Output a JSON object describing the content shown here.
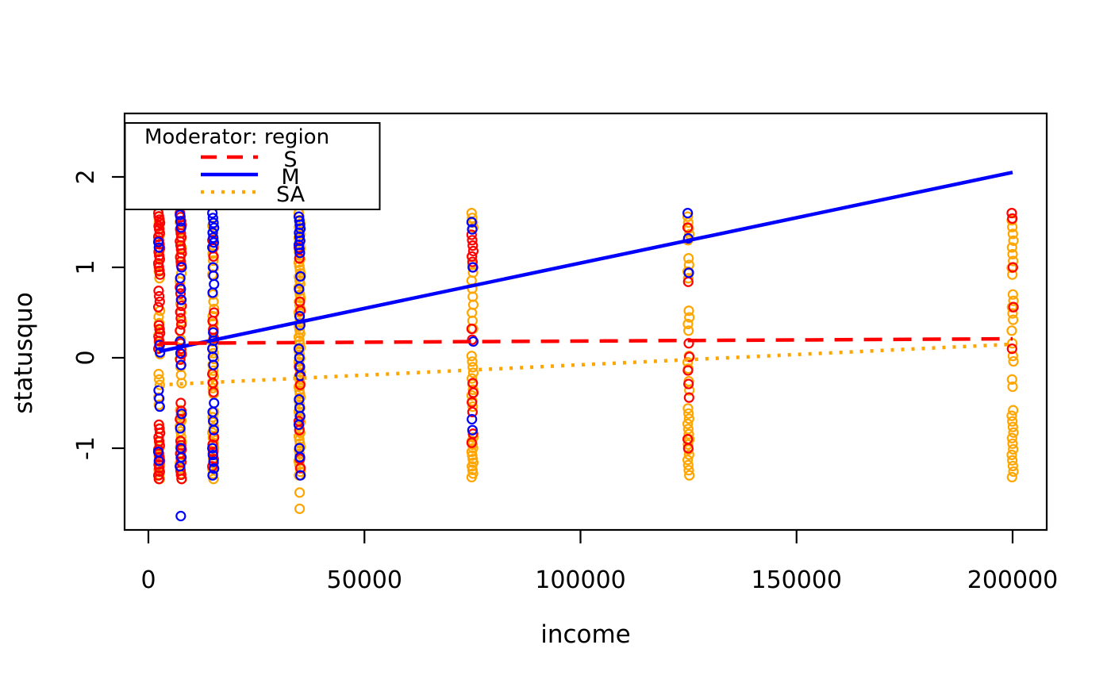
{
  "chart_data": {
    "type": "scatter",
    "title": "",
    "xlabel": "income",
    "ylabel": "statusquo",
    "x_ticks": [
      0,
      50000,
      100000,
      150000,
      200000
    ],
    "x_tick_labels": [
      "0",
      "50000",
      "100000",
      "150000",
      "200000"
    ],
    "y_ticks": [
      -1,
      0,
      1,
      2
    ],
    "y_tick_labels": [
      "-1",
      "0",
      "1",
      "2"
    ],
    "xlim": [
      -5500,
      208000
    ],
    "ylim": [
      -1.9,
      2.7
    ],
    "grid": false,
    "legend": {
      "title": "Moderator: region",
      "position": "top-left",
      "entries": [
        {
          "label": "S",
          "color": "#ff0000",
          "linetype": "dashed"
        },
        {
          "label": "M",
          "color": "#0000ff",
          "linetype": "solid"
        },
        {
          "label": "SA",
          "color": "#ffa500",
          "linetype": "dotted"
        }
      ]
    },
    "lines": [
      {
        "name": "M",
        "color": "#0000ff",
        "linetype": "solid",
        "x": [
          2500,
          200000
        ],
        "y": [
          0.07,
          2.05
        ]
      },
      {
        "name": "S",
        "color": "#ff0000",
        "linetype": "dashed",
        "x": [
          2500,
          200000
        ],
        "y": [
          0.16,
          0.21
        ]
      },
      {
        "name": "SA",
        "color": "#ffa500",
        "linetype": "dotted",
        "x": [
          2500,
          200000
        ],
        "y": [
          -0.3,
          0.15
        ]
      }
    ],
    "colors": {
      "red": "#ff0000",
      "blue": "#0000ff",
      "orange": "#ffa500",
      "axis": "#000000"
    },
    "scatter": {
      "marker": "open-circle",
      "income_levels": [
        2500,
        7500,
        15000,
        35000,
        75000,
        125000,
        200000
      ],
      "y_range_dense": [
        -1.35,
        1.62
      ],
      "columns": [
        {
          "income": 2500,
          "segments": {
            "red": [
              [
                1.6,
                1.42,
                6
              ],
              [
                1.38,
                0.92,
                12
              ],
              [
                0.74,
                0.56,
                4
              ],
              [
                0.36,
                0.1,
                7
              ],
              [
                -0.74,
                -1.06,
                8
              ],
              [
                -1.1,
                -1.34,
                7
              ]
            ],
            "orange": [
              [
                1.56,
                1.3,
                5
              ],
              [
                1.18,
                0.88,
                5
              ],
              [
                0.52,
                0.04,
                8
              ],
              [
                -0.18,
                -0.3,
                3
              ],
              [
                -0.44,
                -0.52,
                2
              ],
              [
                -0.78,
                -1.34,
                12
              ]
            ],
            "blue": [
              [
                1.28,
                1.22,
                2
              ],
              [
                0.14,
                0.06,
                2
              ],
              [
                -0.36,
                -0.54,
                3
              ],
              [
                -1.04,
                -1.14,
                2
              ]
            ]
          },
          "extras": {}
        },
        {
          "income": 7500,
          "segments": {
            "red": [
              [
                1.6,
                1.02,
                14
              ],
              [
                0.78,
                0.3,
                8
              ],
              [
                0.16,
                -0.02,
                4
              ],
              [
                -0.5,
                -0.68,
                3
              ],
              [
                -0.92,
                -1.34,
                10
              ]
            ],
            "orange": [
              [
                1.5,
                0.84,
                8
              ],
              [
                0.6,
                0.2,
                5
              ],
              [
                0.08,
                -0.28,
                5
              ],
              [
                -0.58,
                -1.34,
                14
              ]
            ],
            "blue": [
              [
                1.58,
                1.44,
                3
              ],
              [
                1.0,
                0.64,
                4
              ],
              [
                0.18,
                -0.08,
                3
              ],
              [
                -0.62,
                -0.78,
                2
              ],
              [
                -1.0,
                -1.2,
                3
              ]
            ]
          },
          "extras": {
            "blue": [
              -1.75
            ]
          }
        },
        {
          "income": 15000,
          "segments": {
            "red": [
              [
                1.3,
                1.12,
                3
              ],
              [
                0.5,
                0.22,
                4
              ],
              [
                -0.18,
                -0.38,
                3
              ],
              [
                -0.88,
                -1.2,
                5
              ]
            ],
            "orange": [
              [
                1.46,
                0.92,
                8
              ],
              [
                0.7,
                0.3,
                6
              ],
              [
                0.18,
                -0.4,
                10
              ],
              [
                -0.6,
                -1.34,
                14
              ]
            ],
            "blue": [
              [
                1.6,
                1.22,
                8
              ],
              [
                1.0,
                0.72,
                4
              ],
              [
                0.28,
                -0.08,
                5
              ],
              [
                -0.5,
                -0.8,
                4
              ],
              [
                -1.0,
                -1.3,
                5
              ]
            ]
          },
          "extras": {}
        },
        {
          "income": 35000,
          "segments": {
            "red": [
              [
                1.22,
                1.1,
                2
              ],
              [
                0.62,
                0.52,
                2
              ],
              [
                -0.1,
                -0.3,
                3
              ],
              [
                -0.7,
                -0.8,
                2
              ],
              [
                -1.12,
                -1.22,
                2
              ]
            ],
            "orange": [
              [
                1.6,
                -1.3,
                75
              ]
            ],
            "blue": [
              [
                1.56,
                1.16,
                10
              ],
              [
                0.9,
                0.76,
                2
              ],
              [
                0.46,
                0.36,
                2
              ],
              [
                0.1,
                -0.2,
                4
              ],
              [
                -0.46,
                -0.74,
                4
              ],
              [
                -1.0,
                -1.1,
                2
              ],
              [
                -1.3,
                -1.3,
                1
              ]
            ]
          },
          "extras": {
            "orange": [
              -1.49,
              -1.67
            ]
          }
        },
        {
          "income": 75000,
          "segments": {
            "red": [
              [
                1.36,
                1.0,
                7
              ],
              [
                0.32,
                0.2,
                2
              ],
              [
                -0.28,
                -0.6,
                4
              ],
              [
                -0.84,
                -0.94,
                2
              ]
            ],
            "orange": [
              [
                1.6,
                1.44,
                4
              ],
              [
                1.12,
                0.32,
                10
              ],
              [
                0.02,
                -0.54,
                10
              ],
              [
                -0.88,
                -1.32,
                12
              ]
            ],
            "blue": [
              [
                1.5,
                1.42,
                2
              ],
              [
                1.0,
                1.0,
                1
              ],
              [
                0.18,
                0.18,
                1
              ],
              [
                -0.68,
                -0.8,
                2
              ]
            ]
          },
          "extras": {}
        },
        {
          "income": 125000,
          "segments": {
            "red": [
              [
                1.44,
                1.44,
                1
              ],
              [
                0.84,
                0.84,
                1
              ],
              [
                0.16,
                -0.44,
                5
              ],
              [
                -0.9,
                -1.0,
                2
              ]
            ],
            "orange": [
              [
                1.56,
                1.3,
                5
              ],
              [
                1.1,
                0.88,
                4
              ],
              [
                0.52,
                0.3,
                4
              ],
              [
                0.02,
                -0.12,
                3
              ],
              [
                -0.26,
                -0.36,
                2
              ],
              [
                -0.56,
                -1.3,
                14
              ]
            ],
            "blue": [
              [
                1.6,
                1.6,
                1
              ],
              [
                1.32,
                1.32,
                1
              ],
              [
                0.94,
                0.94,
                1
              ]
            ]
          },
          "extras": {}
        },
        {
          "income": 200000,
          "segments": {
            "red": [
              [
                1.6,
                1.54,
                2
              ],
              [
                1.0,
                1.0,
                1
              ],
              [
                0.56,
                0.56,
                1
              ],
              [
                0.1,
                0.1,
                1
              ]
            ],
            "orange": [
              [
                1.52,
                0.92,
                9
              ],
              [
                0.7,
                0.42,
                5
              ],
              [
                0.3,
                0.16,
                2
              ],
              [
                0.02,
                -0.04,
                2
              ],
              [
                -0.24,
                -0.32,
                2
              ],
              [
                -0.58,
                -1.32,
                13
              ]
            ],
            "blue": []
          },
          "extras": {}
        }
      ]
    }
  }
}
